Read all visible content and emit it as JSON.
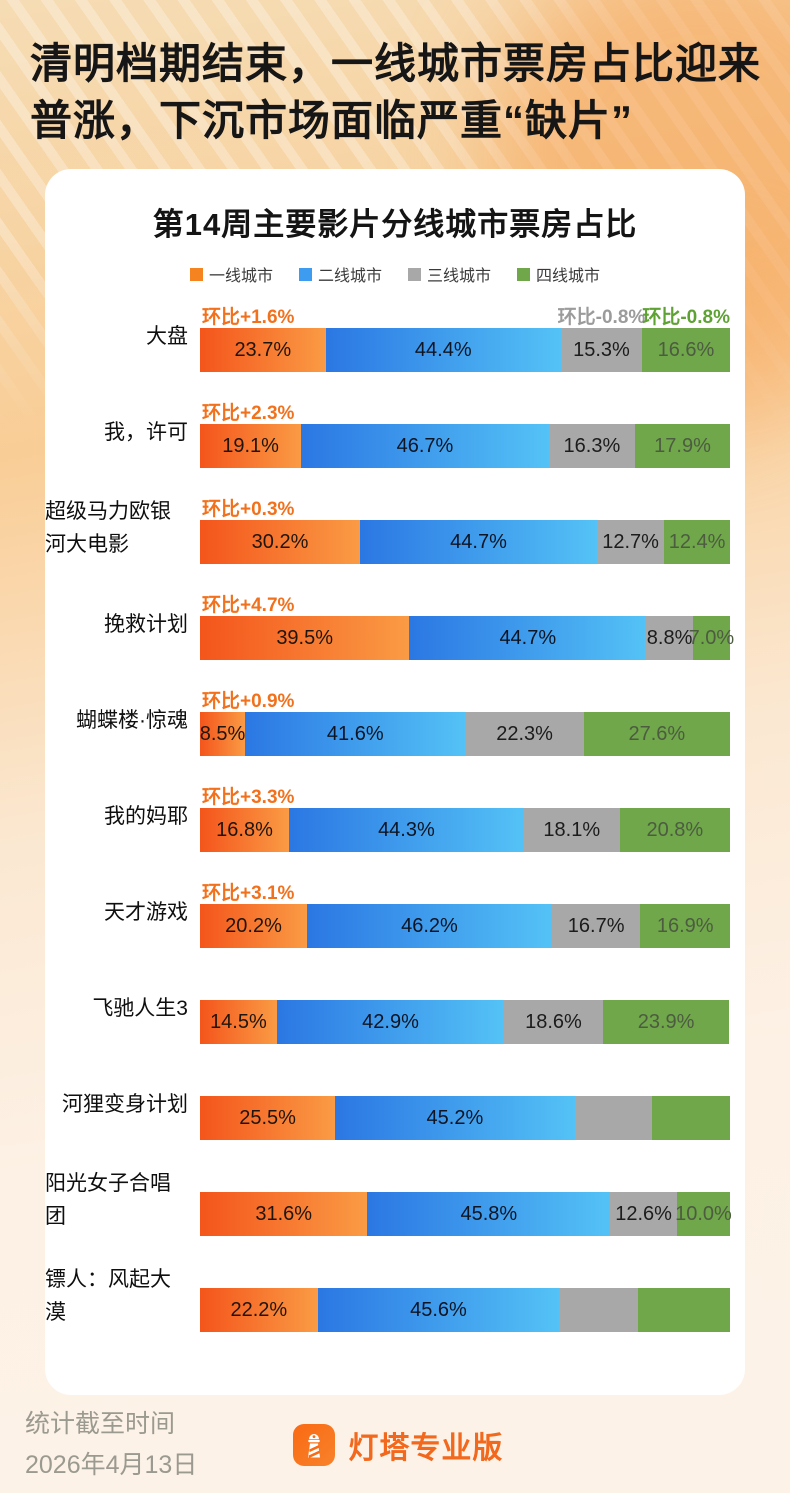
{
  "headline": {
    "line1": "清明档期结束，一线城市票房占比迎来",
    "line2": "普涨，下沉市场面临严重“缺片”"
  },
  "chart_data": {
    "type": "bar",
    "orientation": "horizontal-stacked",
    "title": "第14周主要影片分线城市票房占比",
    "unit": "percent",
    "xlim": [
      0,
      100
    ],
    "legend_position": "top-center",
    "legend": [
      {
        "label": "一线城市",
        "color": "#F5831F"
      },
      {
        "label": "二线城市",
        "color": "#3D9BF0"
      },
      {
        "label": "三线城市",
        "color": "#A8A8A8"
      },
      {
        "label": "四线城市",
        "color": "#6FA74A"
      }
    ],
    "series_names": [
      "一线城市",
      "二线城市",
      "三线城市",
      "四线城市"
    ],
    "segment_gradients": {
      "一线城市": [
        "#F4551B",
        "#FA9B45"
      ],
      "二线城市": [
        "#2B77E3",
        "#54C2F6"
      ],
      "三线城市": [
        "#A8A8A8",
        "#A8A8A8"
      ],
      "四线城市": [
        "#6FA74A",
        "#6FA74A"
      ]
    },
    "annotation_colors": {
      "orange": "#F2711C",
      "gray": "#9B9B9B",
      "green": "#5FA234"
    },
    "rows": [
      {
        "label": "大盘",
        "values": [
          23.7,
          44.4,
          15.3,
          16.6
        ],
        "value_labels": [
          "23.7%",
          "44.4%",
          "15.3%",
          "16.6%"
        ],
        "wow": [
          {
            "text": "环比+1.6%",
            "color": "orange",
            "anchor": 0
          },
          {
            "text": "环比-0.8%",
            "color": "gray",
            "anchor": 2
          },
          {
            "text": "环比-0.8%",
            "color": "green",
            "anchor": 3
          }
        ]
      },
      {
        "label": "我，许可",
        "values": [
          19.1,
          46.7,
          16.3,
          17.9
        ],
        "value_labels": [
          "19.1%",
          "46.7%",
          "16.3%",
          "17.9%"
        ],
        "wow": [
          {
            "text": "环比+2.3%",
            "color": "orange",
            "anchor": 0
          }
        ]
      },
      {
        "label": "超级马力欧银河大电影",
        "values": [
          30.2,
          44.7,
          12.7,
          12.4
        ],
        "value_labels": [
          "30.2%",
          "44.7%",
          "12.7%",
          "12.4%"
        ],
        "wow": [
          {
            "text": "环比+0.3%",
            "color": "orange",
            "anchor": 0
          }
        ]
      },
      {
        "label": "挽救计划",
        "values": [
          39.5,
          44.7,
          8.8,
          7.0
        ],
        "value_labels": [
          "39.5%",
          "44.7%",
          "8.8%",
          "7.0%"
        ],
        "wow": [
          {
            "text": "环比+4.7%",
            "color": "orange",
            "anchor": 0
          }
        ]
      },
      {
        "label": "蝴蝶楼·惊魂",
        "values": [
          8.5,
          41.6,
          22.3,
          27.6
        ],
        "value_labels": [
          "8.5%",
          "41.6%",
          "22.3%",
          "27.6%"
        ],
        "wow": [
          {
            "text": "环比+0.9%",
            "color": "orange",
            "anchor": 0
          }
        ]
      },
      {
        "label": "我的妈耶",
        "values": [
          16.8,
          44.3,
          18.1,
          20.8
        ],
        "value_labels": [
          "16.8%",
          "44.3%",
          "18.1%",
          "20.8%"
        ],
        "wow": [
          {
            "text": "环比+3.3%",
            "color": "orange",
            "anchor": 0
          }
        ]
      },
      {
        "label": "天才游戏",
        "values": [
          20.2,
          46.2,
          16.7,
          16.9
        ],
        "value_labels": [
          "20.2%",
          "46.2%",
          "16.7%",
          "16.9%"
        ],
        "wow": [
          {
            "text": "环比+3.1%",
            "color": "orange",
            "anchor": 0
          }
        ]
      },
      {
        "label": "飞驰人生3",
        "values": [
          14.5,
          42.9,
          18.6,
          23.9
        ],
        "value_labels": [
          "14.5%",
          "42.9%",
          "18.6%",
          "23.9%"
        ],
        "wow": []
      },
      {
        "label": "河狸变身计划",
        "values": [
          25.5,
          45.2,
          14.6,
          14.7
        ],
        "value_labels": [
          "25.5%",
          "45.2%",
          "",
          ""
        ],
        "wow": []
      },
      {
        "label": "阳光女子合唱团",
        "values": [
          31.6,
          45.8,
          12.6,
          10.0
        ],
        "value_labels": [
          "31.6%",
          "45.8%",
          "12.6%",
          "10.0%"
        ],
        "wow": []
      },
      {
        "label": "镖人：风起大漠",
        "values": [
          22.2,
          45.6,
          14.9,
          17.3
        ],
        "value_labels": [
          "22.2%",
          "45.6%",
          "",
          ""
        ],
        "wow": []
      }
    ]
  },
  "footer": {
    "stat_label": "统计截至时间",
    "stat_date": "2026年4月13日",
    "brand": "灯塔专业版",
    "brand_color": "#F2681C",
    "brand_icon": "lighthouse-icon"
  }
}
